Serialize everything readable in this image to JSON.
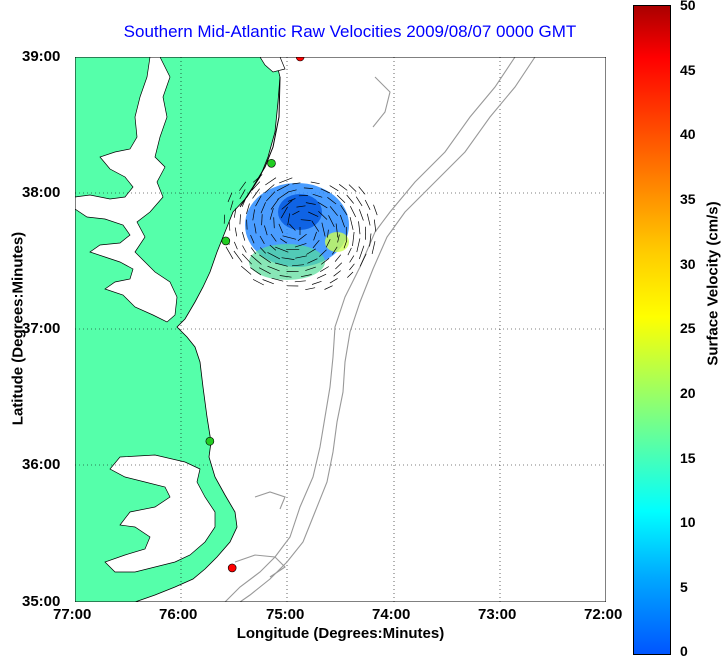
{
  "title": "Southern Mid-Atlantic Raw Velocities 2009/08/07 0000 GMT",
  "x_axis": {
    "label": "Longitude (Degrees:Minutes)",
    "ticks": [
      "77:00",
      "76:00",
      "75:00",
      "74:00",
      "73:00",
      "72:00"
    ]
  },
  "y_axis": {
    "label": "Latitude (Degrees:Minutes)",
    "ticks": [
      "39:00",
      "38:00",
      "37:00",
      "36:00",
      "35:00"
    ]
  },
  "colorbar": {
    "label": "Surface Velocity (cm/s)",
    "ticks": [
      "50",
      "45",
      "40",
      "35",
      "30",
      "25",
      "20",
      "15",
      "10",
      "5",
      "0"
    ],
    "range": [
      0,
      50
    ]
  },
  "colors": {
    "land": "#55ffaa",
    "water": "#ffffff",
    "bathymetry": "#999999",
    "title": "#0000ff",
    "station_green": "#22cc22",
    "station_red": "#ff0000"
  },
  "map": {
    "lon_range": [
      -77,
      -72
    ],
    "lat_range": [
      35,
      39
    ],
    "grid": true,
    "stations": [
      {
        "lon": -74.88,
        "lat": 39.0,
        "color": "red"
      },
      {
        "lon": -75.15,
        "lat": 38.22,
        "color": "green"
      },
      {
        "lon": -75.58,
        "lat": 37.65,
        "color": "green"
      },
      {
        "lon": -75.73,
        "lat": 36.18,
        "color": "green"
      },
      {
        "lon": -75.52,
        "lat": 35.25,
        "color": "red"
      }
    ]
  }
}
